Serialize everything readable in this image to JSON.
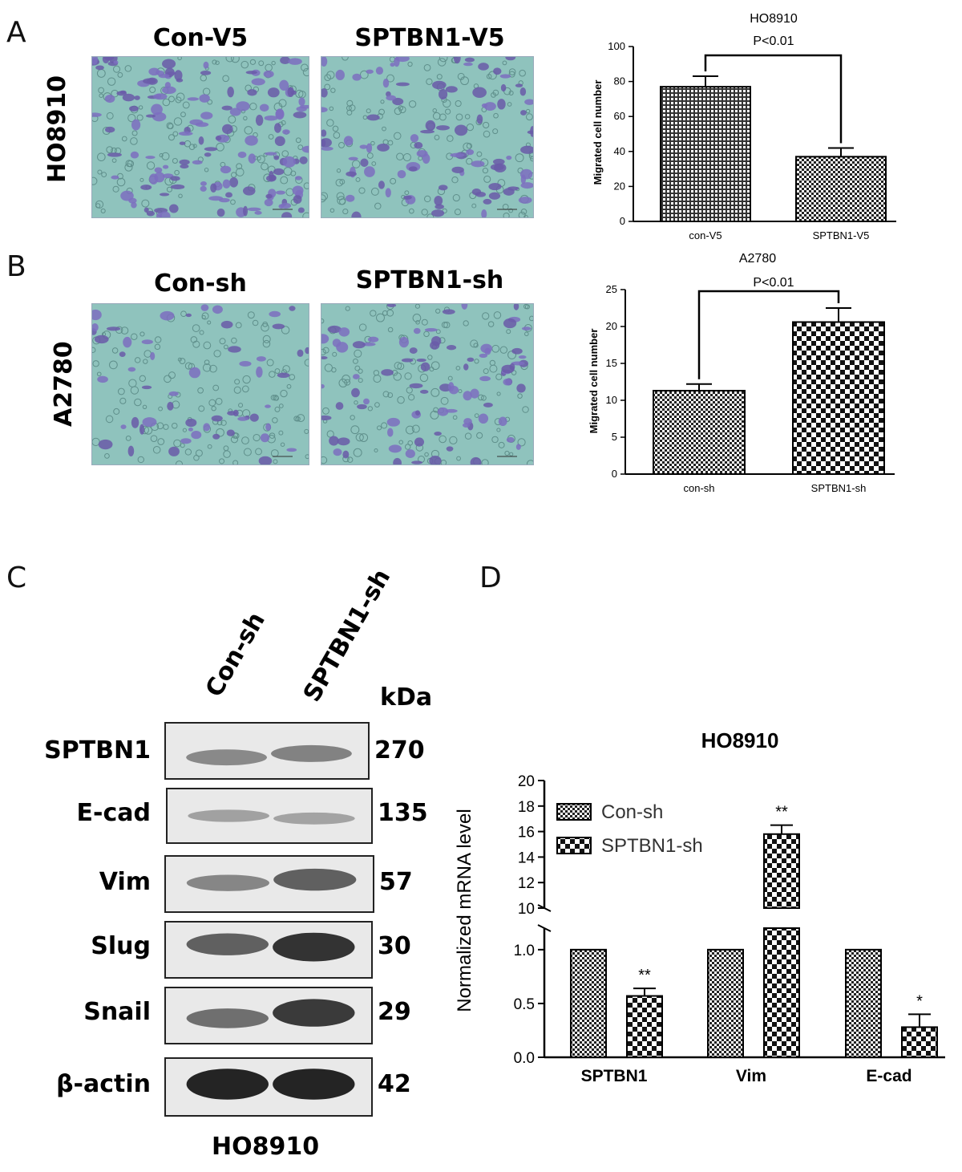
{
  "panels": {
    "A": "A",
    "B": "B",
    "C": "C",
    "D": "D"
  },
  "micrographs": {
    "A": {
      "row_label": "HO8910",
      "left_title": "Con-V5",
      "right_title": "SPTBN1-V5"
    },
    "B": {
      "row_label": "A2780",
      "left_title": "Con-sh",
      "right_title": "SPTBN1-sh"
    }
  },
  "western_blot": {
    "lanes": [
      "Con-sh",
      "SPTBN1-sh"
    ],
    "kda_header": "kDa",
    "proteins": [
      {
        "name": "SPTBN1",
        "kda": "270"
      },
      {
        "name": "E-cad",
        "kda": "135"
      },
      {
        "name": "Vim",
        "kda": "57"
      },
      {
        "name": "Slug",
        "kda": "30"
      },
      {
        "name": "Snail",
        "kda": "29"
      },
      {
        "name": "β-actin",
        "kda": "42"
      }
    ],
    "cell_line": "HO8910"
  },
  "chart_data": [
    {
      "type": "bar",
      "title": "HO8910",
      "subtitle": "P<0.01",
      "categories": [
        "con-V5",
        "SPTBN1-V5"
      ],
      "values": [
        77,
        37
      ],
      "errors": [
        6,
        5
      ],
      "ylabel": "Migrated cell number",
      "xlabel": "",
      "ylim": [
        0,
        100
      ],
      "yticks": [
        0,
        20,
        40,
        60,
        80,
        100
      ],
      "grid": false
    },
    {
      "type": "bar",
      "title": "A2780",
      "subtitle": "P<0.01",
      "categories": [
        "con-sh",
        "SPTBN1-sh"
      ],
      "values": [
        11.3,
        20.6
      ],
      "errors": [
        0.9,
        1.9
      ],
      "ylabel": "Migrated cell number",
      "xlabel": "",
      "ylim": [
        0,
        25
      ],
      "yticks": [
        0,
        5,
        10,
        15,
        20,
        25
      ],
      "grid": false
    },
    {
      "type": "bar",
      "title": "HO8910",
      "categories": [
        "SPTBN1",
        "Vim",
        "E-cad"
      ],
      "series": [
        {
          "name": "Con-sh",
          "values": [
            1.0,
            1.0,
            1.0
          ],
          "errors": [
            0,
            0,
            0
          ]
        },
        {
          "name": "SPTBN1-sh",
          "values": [
            0.57,
            15.8,
            0.28
          ],
          "errors": [
            0.07,
            0.7,
            0.12
          ]
        }
      ],
      "significance": [
        "**",
        "**",
        "*"
      ],
      "ylabel": "Normalized mRNA level",
      "xlabel": "",
      "y_axis_break": {
        "lower": [
          0,
          1.2
        ],
        "upper": [
          10,
          20
        ]
      },
      "yticks_lower": [
        "0.0",
        "0.5",
        "1.0"
      ],
      "yticks_upper": [
        "10",
        "12",
        "14",
        "16",
        "18",
        "20"
      ],
      "legend_position": "top-left",
      "grid": false
    }
  ]
}
